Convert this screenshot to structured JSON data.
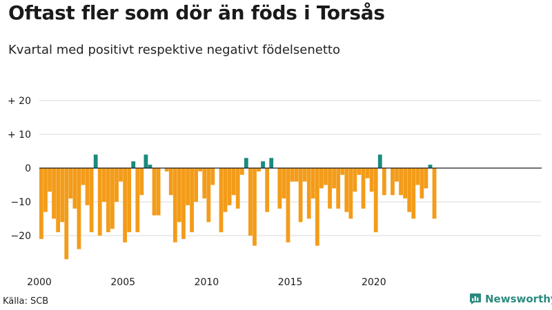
{
  "header": {
    "title": "Oftast fler som dör än föds i Torsås",
    "subtitle": "Kvartal med positivt respektive negativt födelsenetto"
  },
  "footer": {
    "source": "Källa: SCB",
    "brand": "Newsworthy"
  },
  "colors": {
    "positive": "#1a8a7e",
    "negative": "#f39c1a",
    "brand": "#2b8a7e"
  },
  "chart_data": {
    "type": "bar",
    "title": "Oftast fler som dör än föds i Torsås",
    "subtitle": "Kvartal med positivt respektive negativt födelsenetto",
    "xlabel": "",
    "ylabel": "",
    "ylim": [
      -29,
      20
    ],
    "yticks": [
      {
        "value": 20,
        "label": "+ 20"
      },
      {
        "value": 10,
        "label": "+ 10"
      },
      {
        "value": 0,
        "label": "0"
      },
      {
        "value": -10,
        "label": "−10"
      },
      {
        "value": -20,
        "label": "−20"
      }
    ],
    "xticks": [
      "2000",
      "2005",
      "2010",
      "2015",
      "2020"
    ],
    "start": "2000 Q1",
    "period": "quarter",
    "values": [
      -21,
      -13,
      -7,
      -15,
      -19,
      -16,
      -27,
      -9,
      -12,
      -24,
      -5,
      -11,
      -19,
      4,
      -20,
      -10,
      -19,
      -18,
      -10,
      -4,
      -22,
      -19,
      2,
      -19,
      -8,
      4,
      1,
      -14,
      -14,
      0,
      -1,
      -8,
      -22,
      -16,
      -21,
      -11,
      -19,
      -10,
      -1,
      -9,
      -16,
      -5,
      0,
      -19,
      -13,
      -11,
      -8,
      -12,
      -2,
      3,
      -20,
      -23,
      -1,
      2,
      -13,
      3,
      0,
      -12,
      -9,
      -22,
      -4,
      -4,
      -16,
      -4,
      -15,
      -9,
      -23,
      -6,
      -5,
      -12,
      -6,
      -12,
      -2,
      -13,
      -15,
      -7,
      -2,
      -12,
      -3,
      -7,
      -19,
      4,
      -8,
      0,
      -8,
      -4,
      -8,
      -9,
      -13,
      -15,
      -5,
      -9,
      -6,
      1,
      -15
    ]
  }
}
